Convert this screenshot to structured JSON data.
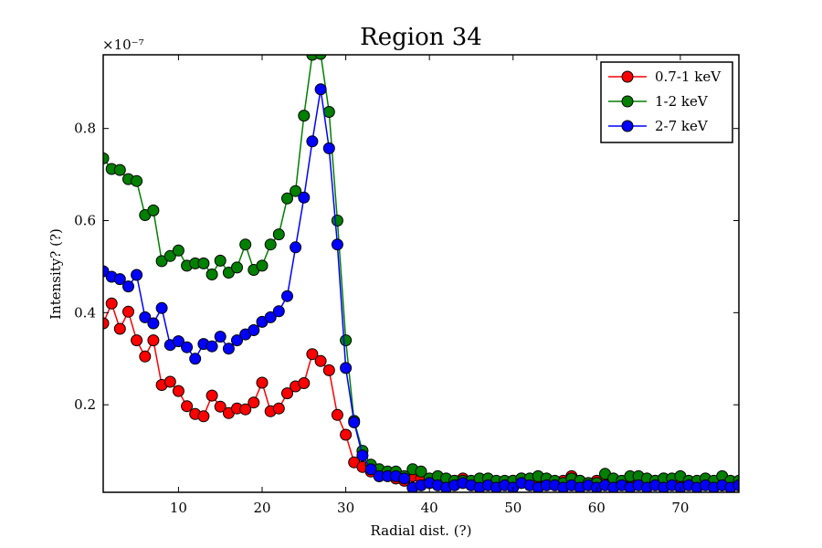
{
  "chart_data": {
    "type": "line",
    "title": "Region 34",
    "xlabel": "Radial dist. (?)",
    "ylabel": "Intensity? (?)",
    "y_multiplier_label": "×10⁻⁷",
    "xlim": [
      1,
      77
    ],
    "ylim": [
      0.01,
      0.96
    ],
    "xticks": [
      10,
      20,
      30,
      40,
      50,
      60,
      70
    ],
    "yticks": [
      0.2,
      0.4,
      0.6,
      0.8
    ],
    "legend_position": "top-right",
    "grid": false,
    "x": [
      1,
      2,
      3,
      4,
      5,
      6,
      7,
      8,
      9,
      10,
      11,
      12,
      13,
      14,
      15,
      16,
      17,
      18,
      19,
      20,
      21,
      22,
      23,
      24,
      25,
      26,
      27,
      28,
      29,
      30,
      31,
      32,
      33,
      34,
      35,
      36,
      37,
      38,
      39,
      40,
      41,
      42,
      43,
      44,
      45,
      46,
      47,
      48,
      49,
      50,
      51,
      52,
      53,
      54,
      55,
      56,
      57,
      58,
      59,
      60,
      61,
      62,
      63,
      64,
      65,
      66,
      67,
      68,
      69,
      70,
      71,
      72,
      73,
      74,
      75,
      76,
      77
    ],
    "series": [
      {
        "name": "0.7-1 keV",
        "color": "#ff0000",
        "values": [
          0.377,
          0.42,
          0.365,
          0.402,
          0.34,
          0.305,
          0.34,
          0.243,
          0.25,
          0.23,
          0.197,
          0.18,
          0.175,
          0.22,
          0.196,
          0.182,
          0.192,
          0.19,
          0.205,
          0.248,
          0.186,
          0.192,
          0.225,
          0.24,
          0.247,
          0.31,
          0.295,
          0.275,
          0.178,
          0.135,
          0.075,
          0.065,
          0.055,
          0.045,
          0.05,
          0.04,
          0.035,
          0.045,
          0.04,
          0.035,
          0.04,
          0.035,
          0.035,
          0.04,
          0.03,
          0.03,
          0.035,
          0.03,
          0.03,
          0.035,
          0.04,
          0.035,
          0.03,
          0.03,
          0.03,
          0.035,
          0.045,
          0.035,
          0.03,
          0.035,
          0.03,
          0.035,
          0.03,
          0.035,
          0.03,
          0.035,
          0.035,
          0.04,
          0.03,
          0.035,
          0.03,
          0.03,
          0.03,
          0.025,
          0.025,
          0.025,
          0.025
        ]
      },
      {
        "name": "1-2 keV",
        "color": "#008000",
        "values": [
          0.735,
          0.712,
          0.71,
          0.69,
          0.686,
          0.612,
          0.622,
          0.512,
          0.523,
          0.535,
          0.502,
          0.507,
          0.507,
          0.483,
          0.513,
          0.487,
          0.498,
          0.548,
          0.493,
          0.502,
          0.548,
          0.57,
          0.648,
          0.664,
          0.828,
          0.96,
          0.962,
          0.836,
          0.6,
          0.34,
          0.165,
          0.1,
          0.07,
          0.06,
          0.055,
          0.055,
          0.045,
          0.06,
          0.055,
          0.04,
          0.045,
          0.04,
          0.035,
          0.035,
          0.035,
          0.04,
          0.04,
          0.035,
          0.035,
          0.035,
          0.04,
          0.04,
          0.045,
          0.04,
          0.035,
          0.03,
          0.04,
          0.035,
          0.03,
          0.03,
          0.05,
          0.04,
          0.035,
          0.045,
          0.045,
          0.04,
          0.035,
          0.04,
          0.04,
          0.045,
          0.035,
          0.035,
          0.04,
          0.035,
          0.045,
          0.035,
          0.035
        ]
      },
      {
        "name": "2-7 keV",
        "color": "#0000ff",
        "values": [
          0.49,
          0.478,
          0.473,
          0.457,
          0.482,
          0.39,
          0.377,
          0.41,
          0.33,
          0.338,
          0.325,
          0.3,
          0.332,
          0.327,
          0.348,
          0.322,
          0.34,
          0.353,
          0.362,
          0.38,
          0.39,
          0.403,
          0.436,
          0.542,
          0.65,
          0.772,
          0.885,
          0.757,
          0.548,
          0.28,
          0.162,
          0.09,
          0.06,
          0.045,
          0.045,
          0.045,
          0.04,
          0.02,
          0.025,
          0.03,
          0.025,
          0.02,
          0.025,
          0.03,
          0.025,
          0.02,
          0.025,
          0.02,
          0.025,
          0.02,
          0.03,
          0.025,
          0.02,
          0.025,
          0.025,
          0.02,
          0.025,
          0.02,
          0.025,
          0.02,
          0.025,
          0.02,
          0.025,
          0.02,
          0.025,
          0.02,
          0.025,
          0.02,
          0.025,
          0.02,
          0.025,
          0.02,
          0.025,
          0.02,
          0.025,
          0.02,
          0.025
        ]
      }
    ]
  }
}
